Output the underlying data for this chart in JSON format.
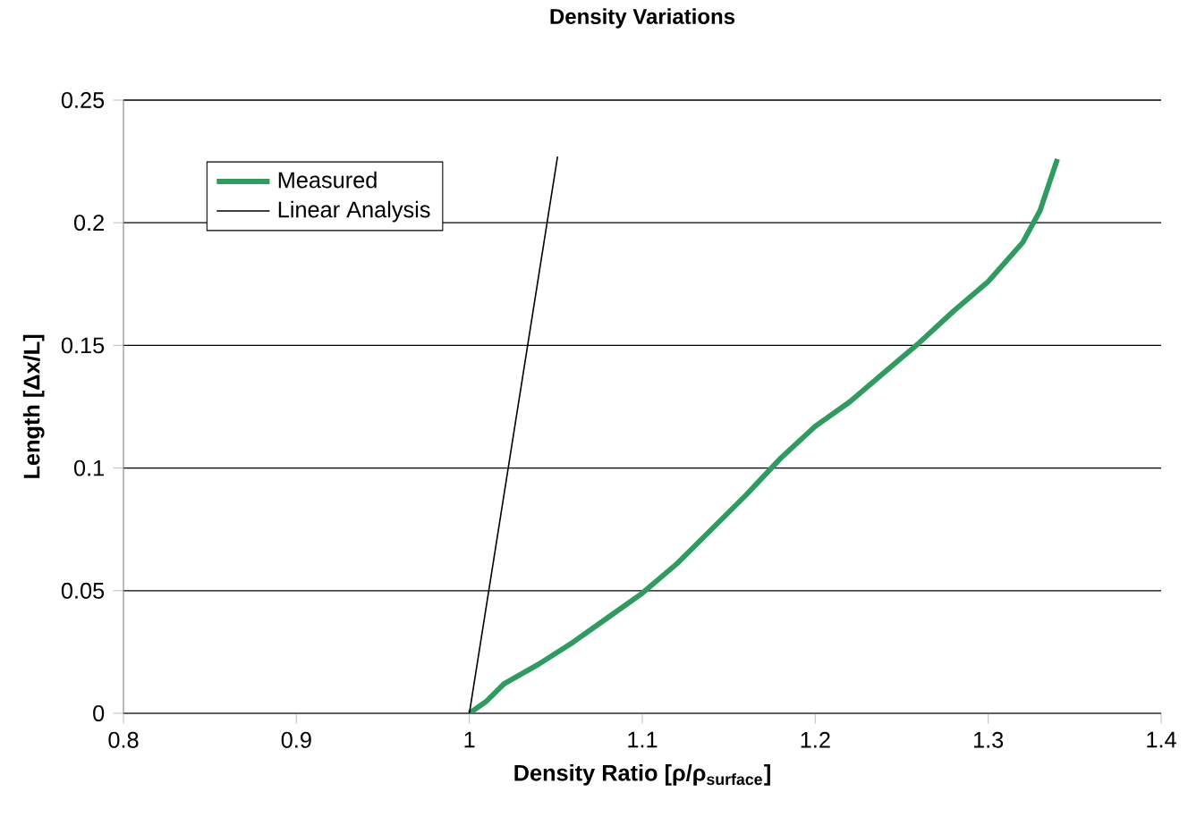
{
  "chart_data": {
    "type": "line",
    "title": "Density Variations",
    "xlabel": "Density Ratio [ρ/ρ$_{surface}$]",
    "ylabel": "Length [Δx/L]",
    "xlim": [
      0.8,
      1.4
    ],
    "xticks": [
      0.8,
      0.9,
      1,
      1.1,
      1.2,
      1.3,
      1.4
    ],
    "ylim": [
      0,
      0.25
    ],
    "yticks": [
      0,
      0.05,
      0.1,
      0.15,
      0.2,
      0.25
    ],
    "grid": "y",
    "legend": "top left",
    "series": [
      {
        "name": "Measured",
        "color": "#2e9b5f",
        "x": [
          1.0,
          1.01,
          1.02,
          1.04,
          1.06,
          1.08,
          1.1,
          1.12,
          1.14,
          1.16,
          1.18,
          1.2,
          1.22,
          1.24,
          1.26,
          1.28,
          1.3,
          1.32,
          1.33,
          1.34
        ],
        "values": [
          0,
          0.005,
          0.012,
          0.02,
          0.029,
          0.039,
          0.049,
          0.061,
          0.075,
          0.089,
          0.104,
          0.117,
          0.127,
          0.139,
          0.151,
          0.164,
          0.176,
          0.192,
          0.205,
          0.226
        ]
      },
      {
        "name": "Linear Analysis",
        "color": "#000000",
        "x": [
          1.0,
          1.051
        ],
        "values": [
          0,
          0.227
        ]
      }
    ]
  }
}
